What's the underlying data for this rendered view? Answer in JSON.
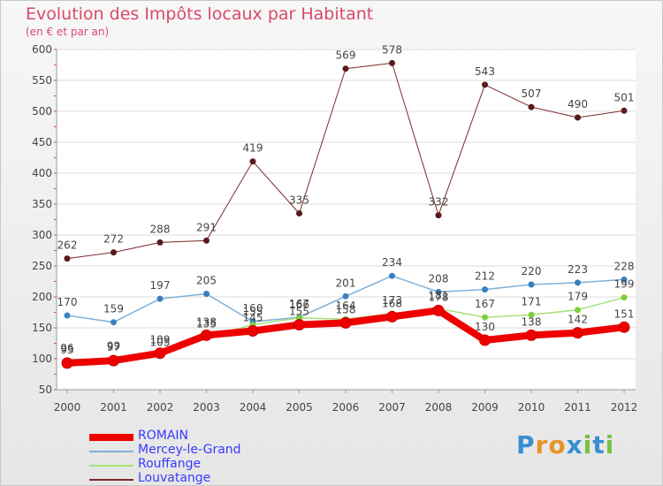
{
  "chart_data": {
    "type": "line",
    "title": "Evolution des Impôts locaux par Habitant",
    "subtitle": "(en € et par an)",
    "x": [
      "2000",
      "2001",
      "2002",
      "2003",
      "2004",
      "2005",
      "2006",
      "2007",
      "2008",
      "2009",
      "2010",
      "2011",
      "2012"
    ],
    "yticks": [
      50,
      100,
      150,
      200,
      250,
      300,
      350,
      400,
      450,
      500,
      550,
      600
    ],
    "ylim": [
      50,
      600
    ],
    "series": [
      {
        "name": "Louvatange",
        "color": "#7a2a2a",
        "marker": "#5a1a1a",
        "width": 1,
        "values": [
          262,
          272,
          288,
          291,
          419,
          335,
          569,
          578,
          332,
          543,
          507,
          490,
          501
        ]
      },
      {
        "name": "Mercey-le-Grand",
        "color": "#7fb0d8",
        "marker": "#3a80c0",
        "width": 1.5,
        "values": [
          170,
          159,
          197,
          205,
          160,
          167,
          201,
          234,
          208,
          212,
          220,
          223,
          228
        ]
      },
      {
        "name": "Rouffange",
        "color": "#a8e07a",
        "marker": "#7ecf3a",
        "width": 1.5,
        "values": [
          96,
          99,
          105,
          135,
          155,
          166,
          164,
          173,
          181,
          167,
          171,
          179,
          199
        ]
      },
      {
        "name": "ROMAIN",
        "color": "#ee0000",
        "marker": "#ee0000",
        "width": 8,
        "values": [
          93,
          97,
          109,
          138,
          145,
          155,
          158,
          168,
          178,
          130,
          138,
          142,
          151
        ]
      }
    ],
    "draw_order": [
      "Louvatange",
      "Mercey-le-Grand",
      "Rouffange",
      "ROMAIN"
    ],
    "labels_shown": {
      "Louvatange": [
        262,
        272,
        288,
        291,
        419,
        335,
        569,
        578,
        332,
        543,
        507,
        490,
        501
      ],
      "Mercey-le-Grand": [
        170,
        159,
        197,
        205,
        160,
        167,
        201,
        234,
        208,
        212,
        220,
        223,
        228
      ],
      "Rouffange": [
        96,
        99,
        105,
        135,
        155,
        166,
        164,
        173,
        181,
        167,
        171,
        179,
        199
      ],
      "ROMAIN": [
        93,
        97,
        109,
        138,
        145,
        155,
        158,
        168,
        178,
        130,
        138,
        142,
        151
      ]
    },
    "legend": [
      "ROMAIN",
      "Mercey-le-Grand",
      "Rouffange",
      "Louvatange"
    ],
    "legend_position": "bottom-left"
  },
  "brand": {
    "text": "Proxiti",
    "letters": [
      "P",
      "r",
      "o",
      "x",
      "i",
      "t",
      "i"
    ],
    "colors": [
      "#3a8fd0",
      "#e8932a",
      "#e8932a",
      "#3a8fd0",
      "#7ac043",
      "#3a8fd0",
      "#7ac043"
    ]
  }
}
